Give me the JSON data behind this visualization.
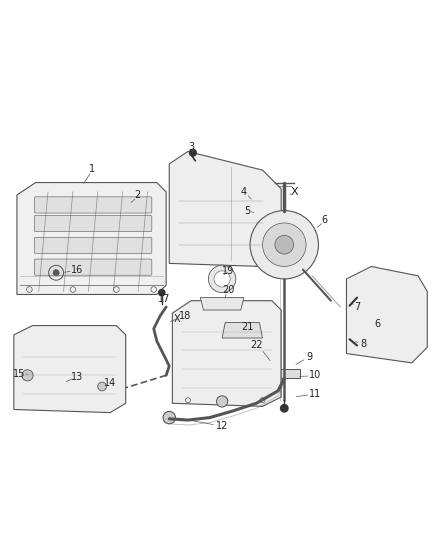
{
  "bg_color": "#ffffff",
  "line_color": "#555555",
  "dark_color": "#333333",
  "part_fill": "#f0f0f0",
  "part_fill2": "#e8e6e6",
  "xlim": [
    0,
    7
  ],
  "ylim": [
    2.5,
    9.0
  ],
  "figsize": [
    4.38,
    5.33
  ],
  "dpi": 100
}
